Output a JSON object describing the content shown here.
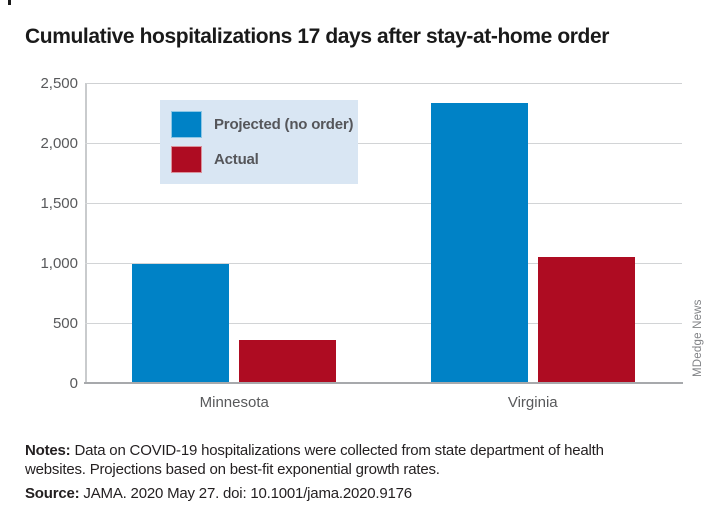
{
  "title": "Cumulative hospitalizations 17 days after stay-at-home order",
  "credit": "MDedge News",
  "notes": {
    "label": "Notes:",
    "line1": "Data on COVID-19 hospitalizations were collected from state department of health",
    "line2": "websites. Projections based on best-fit exponential growth rates."
  },
  "source": {
    "label": "Source:",
    "text": "JAMA. 2020 May 27. doi: 10.1001/jama.2020.9176"
  },
  "colors": {
    "projected_blue": "#0082c6",
    "actual_red": "#ae0c22",
    "legend_background": "#d9e6f3",
    "gridline": "#d2d4d6",
    "axis": "#a7a9ac",
    "tick_text": "#58595b"
  },
  "chart_data": {
    "type": "bar",
    "categories": [
      "Minnesota",
      "Virginia"
    ],
    "series": [
      {
        "name": "Projected (no order)",
        "color": "#0082c6",
        "values": [
          988,
          2335
        ]
      },
      {
        "name": "Actual",
        "color": "#ae0c22",
        "values": [
          361,
          1048
        ]
      }
    ],
    "title": "Cumulative hospitalizations 17 days after stay-at-home order",
    "xlabel": "",
    "ylabel": "",
    "ylim": [
      0,
      2500
    ],
    "ytick_step": 500,
    "grid": true,
    "legend_position": "upper-left-inside"
  }
}
